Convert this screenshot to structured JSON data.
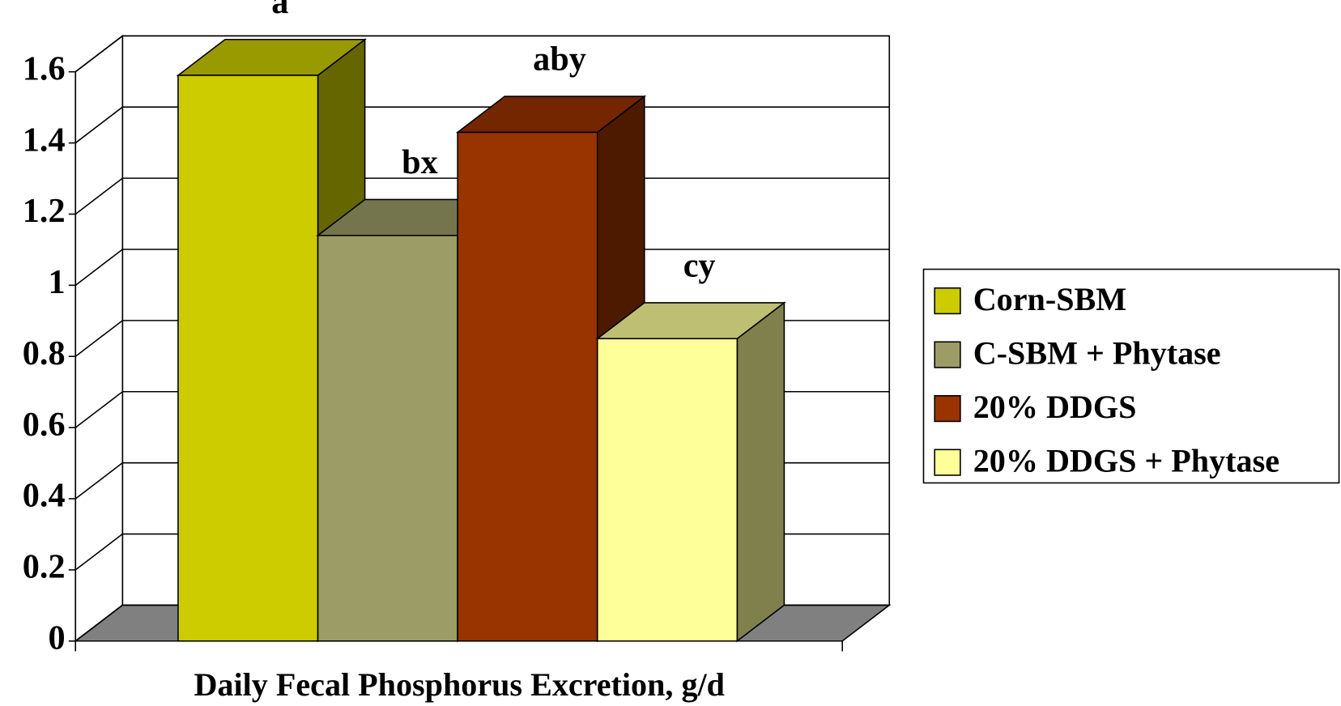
{
  "chart_data": {
    "type": "bar3d",
    "xlabel": "Daily Fecal Phosphorus Excretion, g/d",
    "ylim": [
      0,
      1.6
    ],
    "yticks": [
      0,
      0.2,
      0.4,
      0.6,
      0.8,
      1,
      1.2,
      1.4,
      1.6
    ],
    "grid": true,
    "legend": "right",
    "series": [
      {
        "name": "Corn-SBM",
        "color": "#cccc00",
        "values": [
          1.59
        ],
        "labels": [
          "a"
        ]
      },
      {
        "name": "C-SBM + Phytase",
        "color": "#9c9c66",
        "values": [
          1.14
        ],
        "labels": [
          "bx"
        ]
      },
      {
        "name": "20% DDGS",
        "color": "#993300",
        "values": [
          1.43
        ],
        "labels": [
          "aby"
        ]
      },
      {
        "name": "20% DDGS + Phytase",
        "color": "#ffff99",
        "values": [
          0.85
        ],
        "labels": [
          "cy"
        ]
      }
    ]
  }
}
